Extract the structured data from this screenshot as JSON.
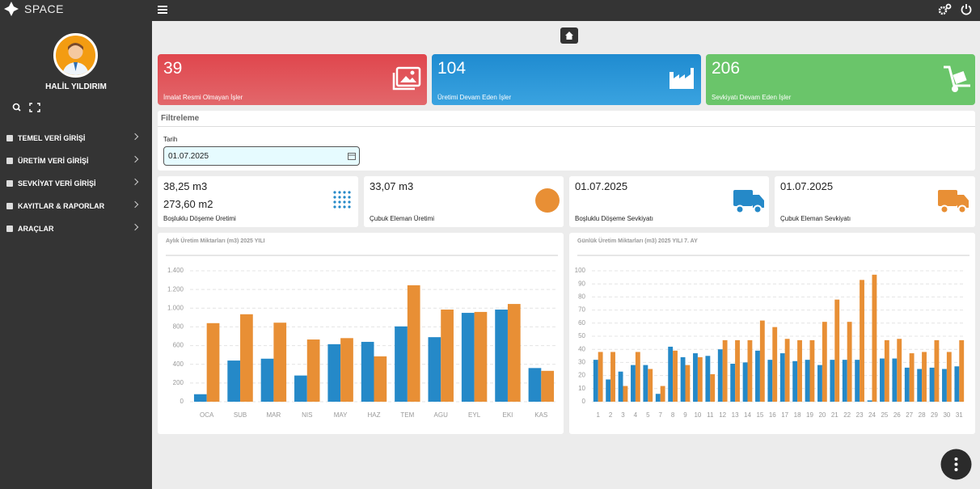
{
  "brand": "SPACE",
  "user": {
    "name": "HALİL YILDIRIM"
  },
  "menu": [
    "TEMEL VERİ GİRİŞİ",
    "ÜRETİM VERİ GİRİŞİ",
    "SEVKİYAT VERİ GİRİŞİ",
    "KAYITLAR & RAPORLAR",
    "ARAÇLAR"
  ],
  "stat_cards": [
    {
      "value": 39,
      "label": "İmalat Resmi Olmayan İşler"
    },
    {
      "value": 104,
      "label": "Üretimi Devam Eden İşler"
    },
    {
      "value": 206,
      "label": "Sevkiyatı Devam Eden İşler"
    }
  ],
  "filter": {
    "title": "Filtreleme",
    "field_label": "Tarih",
    "date": "01.07.2025"
  },
  "info_cards": [
    {
      "lines": [
        "38,25 m3",
        "273,60 m2"
      ],
      "label": "Boşluklu Döşeme Üretimi"
    },
    {
      "lines": [
        "33,07 m3"
      ],
      "label": "Çubuk Eleman Üretimi"
    },
    {
      "lines": [
        "01.07.2025"
      ],
      "label": "Boşluklu Döşeme Sevkiyatı"
    },
    {
      "lines": [
        "01.07.2025"
      ],
      "label": "Çubuk Eleman Sevkiyatı"
    }
  ],
  "chart_data": [
    {
      "type": "bar",
      "title": "Aylık Üretim Miktarları (m3) 2025 YILI",
      "categories": [
        "OCA",
        "SUB",
        "MAR",
        "NIS",
        "MAY",
        "HAZ",
        "TEM",
        "AGU",
        "EYL",
        "EKI",
        "KAS"
      ],
      "series": [
        {
          "color": "#2589c8",
          "values": [
            80,
            440,
            460,
            280,
            615,
            640,
            805,
            690,
            950,
            985,
            360
          ]
        },
        {
          "color": "#e88f35",
          "values": [
            840,
            935,
            845,
            665,
            680,
            485,
            1245,
            985,
            960,
            1045,
            330
          ]
        }
      ],
      "ylim": [
        0,
        1400
      ],
      "yticks": [
        0,
        200,
        400,
        600,
        800,
        {
          "value": 1000,
          "label": "1.000"
        },
        {
          "value": 1200,
          "label": "1.200"
        },
        {
          "value": 1400,
          "label": "1.400"
        }
      ],
      "grid": true
    },
    {
      "type": "bar",
      "title": "Günlük Üretim Miktarları (m3) 2025 YILI 7. AY",
      "categories": [
        "1",
        "2",
        "3",
        "4",
        "5",
        "7",
        "8",
        "9",
        "10",
        "11",
        "12",
        "13",
        "14",
        "15",
        "16",
        "17",
        "18",
        "19",
        "20",
        "21",
        "22",
        "23",
        "24",
        "25",
        "26",
        "27",
        "28",
        "29",
        "30",
        "31"
      ],
      "series": [
        {
          "color": "#2589c8",
          "values": [
            32,
            17,
            23,
            28,
            28,
            6,
            42,
            34,
            37,
            35,
            40,
            29,
            30,
            39,
            32,
            37,
            31,
            32,
            28,
            32,
            32,
            32,
            1,
            33,
            33,
            26,
            25,
            26,
            25,
            27
          ]
        },
        {
          "color": "#e88f35",
          "values": [
            38,
            38,
            12,
            38,
            25,
            12,
            39,
            28,
            34,
            21,
            47,
            47,
            47,
            62,
            57,
            48,
            47,
            47,
            61,
            78,
            61,
            93,
            97,
            47,
            48,
            37,
            38,
            47,
            38,
            47
          ]
        }
      ],
      "ylim": [
        0,
        100
      ],
      "yticks": [
        0,
        10,
        20,
        30,
        40,
        50,
        60,
        70,
        80,
        90,
        100
      ],
      "grid": true
    }
  ]
}
